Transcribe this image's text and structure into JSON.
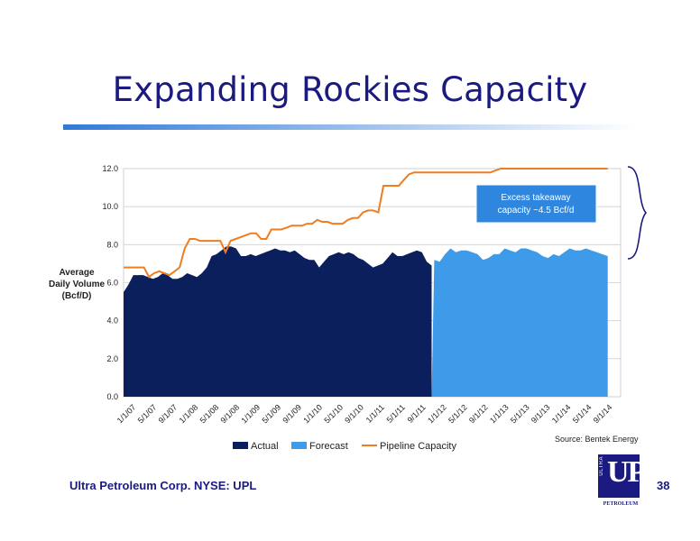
{
  "slide": {
    "title": "Expanding Rockies Capacity",
    "footer": "Ultra Petroleum Corp. NYSE: UPL",
    "page_number": "38",
    "source": "Source: Bentek Energy",
    "logo": {
      "ultra": "ULTRA",
      "up": "UP",
      "petroleum": "PETROLEUM"
    }
  },
  "colors": {
    "title": "#1a1a80",
    "actual": "#0b1f5c",
    "forecast": "#3d9be9",
    "pipeline": "#ef7d22",
    "callout": "#2e86de"
  },
  "chart_data": {
    "type": "area",
    "ylabel": [
      "Average",
      "Daily Volume",
      "(Bcf/D)"
    ],
    "ylim": [
      0,
      12
    ],
    "yticks": [
      "0.0",
      "2.0",
      "4.0",
      "6.0",
      "8.0",
      "10.0",
      "12.0"
    ],
    "x_tick_labels": [
      "1/1/07",
      "5/1/07",
      "9/1/07",
      "1/1/08",
      "5/1/08",
      "9/1/08",
      "1/1/09",
      "5/1/09",
      "9/1/09",
      "1/1/10",
      "5/1/10",
      "9/1/10",
      "1/1/11",
      "5/1/11",
      "9/1/11",
      "1/1/12",
      "5/1/12",
      "9/1/12",
      "1/1/13",
      "5/1/13",
      "9/1/13",
      "1/1/14",
      "5/1/14",
      "9/1/14"
    ],
    "grid": true,
    "legend_position": "bottom",
    "series": [
      {
        "name": "Actual",
        "type": "area",
        "values": [
          5.5,
          5.9,
          6.4,
          6.4,
          6.4,
          6.3,
          6.2,
          6.3,
          6.5,
          6.4,
          6.2,
          6.2,
          6.3,
          6.5,
          6.4,
          6.3,
          6.5,
          6.8,
          7.4,
          7.5,
          7.7,
          7.9,
          7.9,
          7.8,
          7.4,
          7.4,
          7.5,
          7.4,
          7.5,
          7.6,
          7.7,
          7.8,
          7.7,
          7.7,
          7.6,
          7.7,
          7.5,
          7.3,
          7.2,
          7.2,
          6.8,
          7.1,
          7.4,
          7.5,
          7.6,
          7.5,
          7.6,
          7.5,
          7.3,
          7.2,
          7.0,
          6.8,
          6.9,
          7.0,
          7.3,
          7.6,
          7.4,
          7.4,
          7.5,
          7.6,
          7.7,
          7.6,
          7.1,
          6.9
        ]
      },
      {
        "name": "Forecast",
        "type": "area",
        "values": [
          7.2,
          7.1,
          7.5,
          7.8,
          7.6,
          7.7,
          7.7,
          7.6,
          7.5,
          7.2,
          7.3,
          7.5,
          7.5,
          7.8,
          7.7,
          7.6,
          7.8,
          7.8,
          7.7,
          7.6,
          7.4,
          7.3,
          7.5,
          7.4,
          7.6,
          7.8,
          7.7,
          7.7,
          7.8,
          7.7,
          7.6,
          7.5,
          7.4
        ]
      },
      {
        "name": "Pipeline Capacity",
        "type": "line",
        "values": [
          6.8,
          6.8,
          6.8,
          6.8,
          6.8,
          6.3,
          6.5,
          6.6,
          6.5,
          6.4,
          6.6,
          6.8,
          7.8,
          8.3,
          8.3,
          8.2,
          8.2,
          8.2,
          8.2,
          8.2,
          7.6,
          8.2,
          8.3,
          8.4,
          8.5,
          8.6,
          8.6,
          8.3,
          8.3,
          8.8,
          8.8,
          8.8,
          8.9,
          9.0,
          9.0,
          9.0,
          9.1,
          9.1,
          9.3,
          9.2,
          9.2,
          9.1,
          9.1,
          9.1,
          9.3,
          9.4,
          9.4,
          9.7,
          9.8,
          9.8,
          9.7,
          11.1,
          11.1,
          11.1,
          11.1,
          11.4,
          11.7,
          11.8,
          11.8,
          11.8,
          11.8,
          11.8,
          11.8,
          11.8,
          11.8,
          11.8,
          11.8,
          11.8,
          11.8,
          11.8,
          11.8,
          11.8,
          11.8,
          11.9,
          12.0,
          12.0,
          12.0,
          12.0,
          12.0,
          12.0,
          12.0,
          12.0,
          12.0,
          12.0,
          12.0,
          12.0,
          12.0,
          12.0,
          12.0,
          12.0,
          12.0,
          12.0,
          12.0,
          12.0,
          12.0,
          12.0
        ]
      }
    ],
    "annotation": {
      "text": [
        "Excess takeaway",
        "capacity ~4.5 Bcf/d"
      ]
    }
  }
}
